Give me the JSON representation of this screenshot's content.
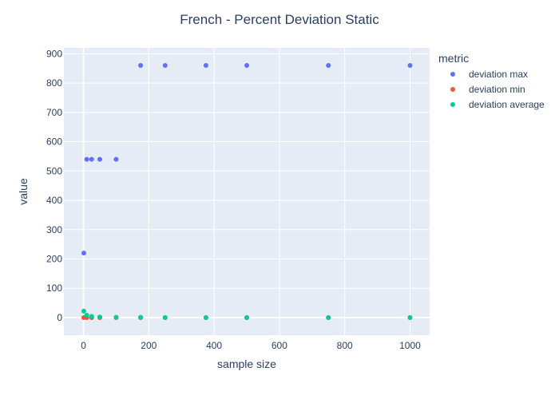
{
  "chart_data": {
    "type": "scatter",
    "title": "French - Percent Deviation Static",
    "xlabel": "sample size",
    "ylabel": "value",
    "xlim": [
      -60,
      1060
    ],
    "ylim": [
      -60,
      920
    ],
    "xticks": [
      0,
      200,
      400,
      600,
      800,
      1000
    ],
    "yticks": [
      0,
      100,
      200,
      300,
      400,
      500,
      600,
      700,
      800,
      900
    ],
    "grid": true,
    "legend": {
      "title": "metric",
      "position": "right"
    },
    "series": [
      {
        "name": "deviation max",
        "color": "#636efa",
        "points": [
          [
            1,
            220
          ],
          [
            10,
            540
          ],
          [
            25,
            540
          ],
          [
            50,
            540
          ],
          [
            100,
            540
          ],
          [
            175,
            860
          ],
          [
            250,
            860
          ],
          [
            375,
            860
          ],
          [
            500,
            860
          ],
          [
            750,
            860
          ],
          [
            1000,
            860
          ]
        ]
      },
      {
        "name": "deviation min",
        "color": "#ef553b",
        "points": [
          [
            1,
            0
          ],
          [
            10,
            0
          ],
          [
            25,
            0
          ],
          [
            50,
            0
          ],
          [
            100,
            0
          ],
          [
            175,
            0
          ],
          [
            250,
            0
          ],
          [
            375,
            0
          ],
          [
            500,
            0
          ],
          [
            750,
            0
          ],
          [
            1000,
            0
          ]
        ]
      },
      {
        "name": "deviation average",
        "color": "#00cc96",
        "points": [
          [
            1,
            22
          ],
          [
            10,
            8
          ],
          [
            25,
            4
          ],
          [
            50,
            2
          ],
          [
            100,
            1
          ],
          [
            175,
            1
          ],
          [
            250,
            0
          ],
          [
            375,
            0
          ],
          [
            500,
            0
          ],
          [
            750,
            0
          ],
          [
            1000,
            0
          ]
        ]
      }
    ]
  }
}
